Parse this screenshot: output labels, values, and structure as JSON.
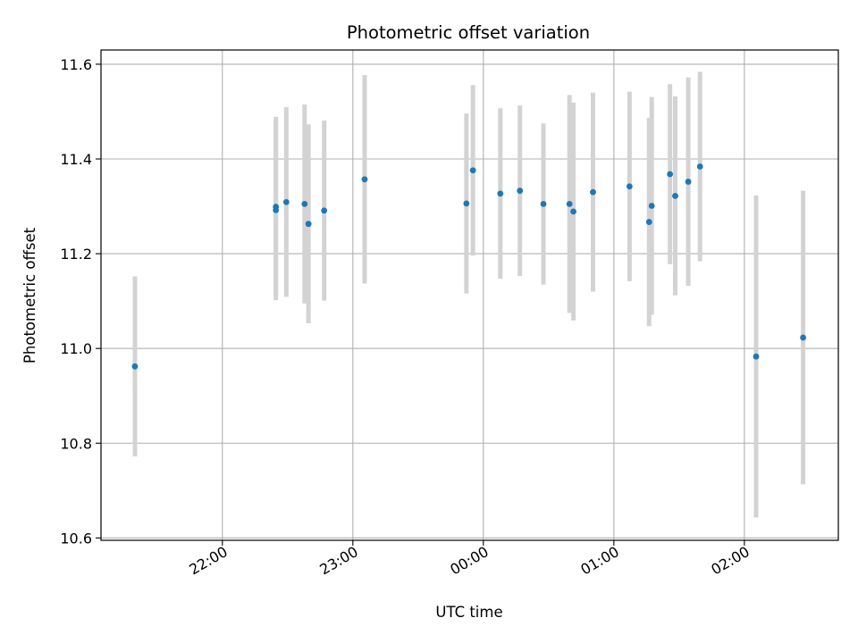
{
  "chart_data": {
    "type": "scatter",
    "title": "Photometric offset variation",
    "xlabel": "UTC time",
    "ylabel": "Photometric offset",
    "x_unit": "hours",
    "xlim": [
      21.07,
      26.72
    ],
    "ylim": [
      10.595,
      11.63
    ],
    "x_ticks": [
      {
        "value": 22,
        "label": "22:00"
      },
      {
        "value": 23,
        "label": "23:00"
      },
      {
        "value": 24,
        "label": "00:00"
      },
      {
        "value": 25,
        "label": "01:00"
      },
      {
        "value": 26,
        "label": "02:00"
      }
    ],
    "y_ticks": [
      {
        "value": 10.6,
        "label": "10.6"
      },
      {
        "value": 10.8,
        "label": "10.8"
      },
      {
        "value": 11.0,
        "label": "11.0"
      },
      {
        "value": 11.2,
        "label": "11.2"
      },
      {
        "value": 11.4,
        "label": "11.4"
      },
      {
        "value": 11.6,
        "label": "11.6"
      }
    ],
    "grid": true,
    "marker_color": "#1f77b4",
    "errorbar_color": "#d3d3d3",
    "points": [
      {
        "x": 21.33,
        "y": 10.962,
        "err": 0.19
      },
      {
        "x": 22.41,
        "y": 11.292,
        "err": 0.19
      },
      {
        "x": 22.41,
        "y": 11.299,
        "err": 0.19
      },
      {
        "x": 22.49,
        "y": 11.309,
        "err": 0.2
      },
      {
        "x": 22.63,
        "y": 11.305,
        "err": 0.21
      },
      {
        "x": 22.66,
        "y": 11.263,
        "err": 0.21
      },
      {
        "x": 22.78,
        "y": 11.291,
        "err": 0.19
      },
      {
        "x": 23.09,
        "y": 11.357,
        "err": 0.22
      },
      {
        "x": 23.87,
        "y": 11.306,
        "err": 0.19
      },
      {
        "x": 23.92,
        "y": 11.376,
        "err": 0.18
      },
      {
        "x": 24.13,
        "y": 11.327,
        "err": 0.18
      },
      {
        "x": 24.28,
        "y": 11.333,
        "err": 0.18
      },
      {
        "x": 24.46,
        "y": 11.305,
        "err": 0.17
      },
      {
        "x": 24.66,
        "y": 11.305,
        "err": 0.23
      },
      {
        "x": 24.69,
        "y": 11.289,
        "err": 0.23
      },
      {
        "x": 24.84,
        "y": 11.33,
        "err": 0.21
      },
      {
        "x": 25.12,
        "y": 11.342,
        "err": 0.2
      },
      {
        "x": 25.27,
        "y": 11.267,
        "err": 0.22
      },
      {
        "x": 25.29,
        "y": 11.301,
        "err": 0.23
      },
      {
        "x": 25.43,
        "y": 11.368,
        "err": 0.19
      },
      {
        "x": 25.47,
        "y": 11.322,
        "err": 0.21
      },
      {
        "x": 25.57,
        "y": 11.352,
        "err": 0.22
      },
      {
        "x": 25.66,
        "y": 11.384,
        "err": 0.2
      },
      {
        "x": 26.09,
        "y": 10.983,
        "err": 0.34
      },
      {
        "x": 26.45,
        "y": 11.023,
        "err": 0.31
      }
    ]
  }
}
